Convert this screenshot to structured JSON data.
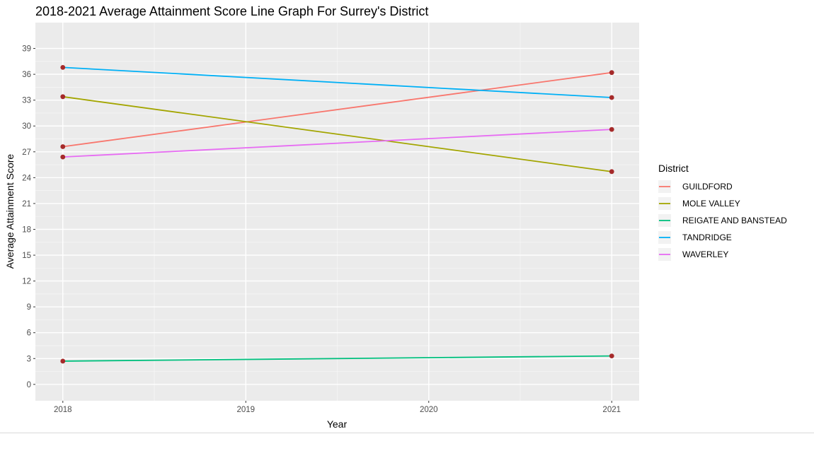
{
  "chart_data": {
    "type": "line",
    "title": "2018-2021 Average Attainment Score Line Graph For Surrey's District",
    "xlabel": "Year",
    "ylabel": "Average Attainment Score",
    "x": [
      2018,
      2021
    ],
    "xlim": [
      2017.85,
      2021.15
    ],
    "xticks": [
      2018,
      2019,
      2020,
      2021
    ],
    "ylim": [
      -1.9,
      42.0
    ],
    "yticks": [
      0,
      3,
      6,
      9,
      12,
      15,
      18,
      21,
      24,
      27,
      30,
      33,
      36,
      39
    ],
    "grid": true,
    "legend": {
      "title": "District",
      "position": "right"
    },
    "point_color": "#a52a2a",
    "panel_color": "#ebebeb",
    "series": [
      {
        "name": "GUILDFORD",
        "color": "#F8766D",
        "values": [
          27.6,
          36.2
        ]
      },
      {
        "name": "MOLE VALLEY",
        "color": "#A3A500",
        "values": [
          33.4,
          24.7
        ]
      },
      {
        "name": "REIGATE AND BANSTEAD",
        "color": "#00BF7D",
        "values": [
          2.7,
          3.3
        ]
      },
      {
        "name": "TANDRIDGE",
        "color": "#00B0F6",
        "values": [
          36.8,
          33.3
        ]
      },
      {
        "name": "WAVERLEY",
        "color": "#E76BF3",
        "values": [
          26.4,
          29.6
        ]
      }
    ]
  }
}
